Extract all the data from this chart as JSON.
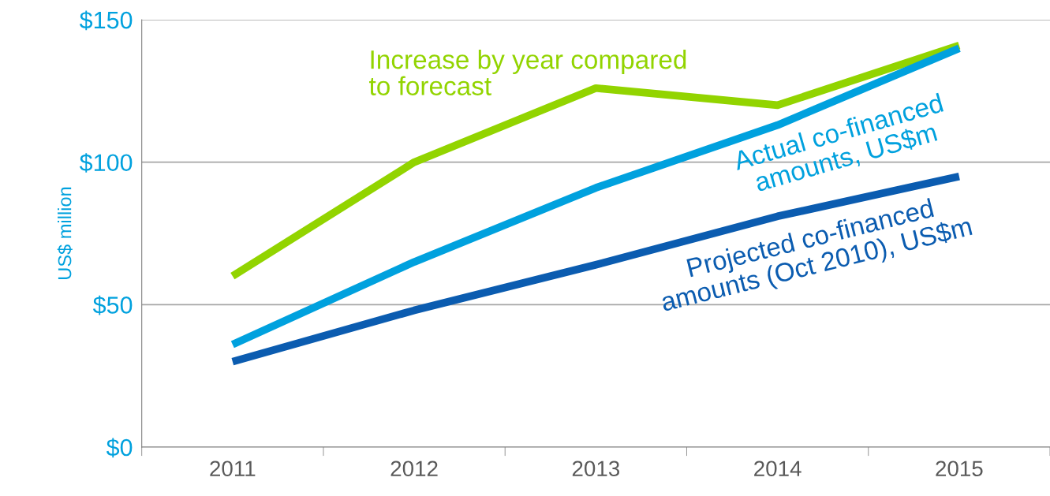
{
  "chart_data": {
    "type": "line",
    "ylabel": "US$ million",
    "categories": [
      "2011",
      "2012",
      "2013",
      "2014",
      "2015"
    ],
    "series": [
      {
        "name": "Increase by year compared\nto forecast",
        "color": "#92d400",
        "values": [
          60,
          100,
          126,
          120,
          141
        ]
      },
      {
        "name": "Actual co-financed\namounts, US$m",
        "color": "#00a1de",
        "values": [
          36,
          65,
          91,
          113,
          140
        ]
      },
      {
        "name": "Projected co-financed\namounts (Oct 2010), US$m",
        "color": "#0b5cb0",
        "values": [
          30,
          48,
          64,
          81,
          95
        ]
      }
    ],
    "ylim": [
      0,
      150
    ],
    "yticks": [
      {
        "value": 0,
        "label": "$0"
      },
      {
        "value": 50,
        "label": "$50"
      },
      {
        "value": 100,
        "label": "$100"
      },
      {
        "value": 150,
        "label": "$150"
      }
    ],
    "grid": "y",
    "legend": false,
    "marker": "none",
    "line_style": "solid"
  }
}
